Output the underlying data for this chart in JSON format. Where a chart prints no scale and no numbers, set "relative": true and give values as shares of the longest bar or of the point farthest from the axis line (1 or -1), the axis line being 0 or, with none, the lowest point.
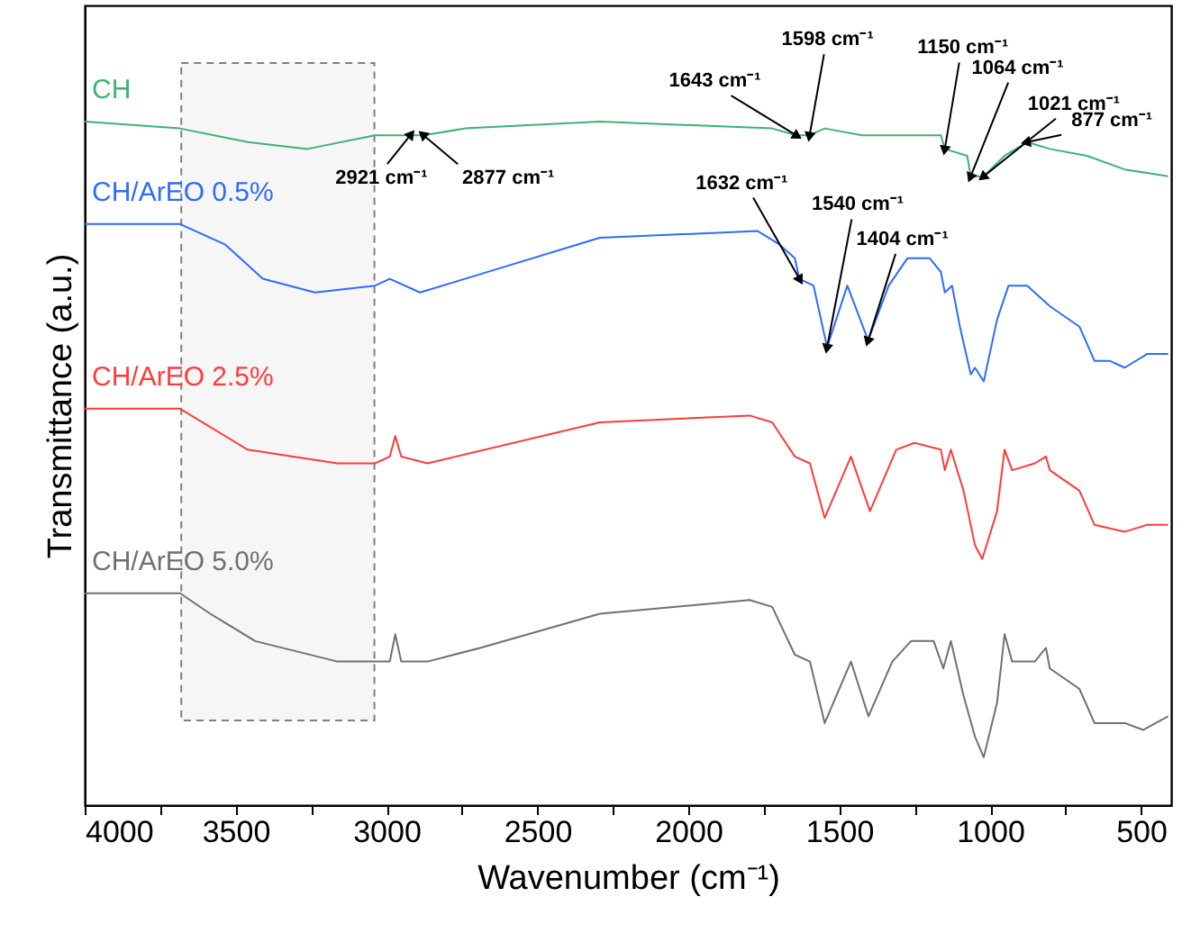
{
  "chart_data": {
    "type": "line",
    "relative": true,
    "xlabel": "Wavenumber (cm⁻¹)",
    "ylabel": "Transmittance (a.u.)",
    "xlim": [
      4000,
      400
    ],
    "xticks": [
      4000,
      {
        "value": 3750,
        "label": null
      },
      3500,
      {
        "value": 3250,
        "label": null
      },
      3000,
      {
        "value": 2750,
        "label": null
      },
      2500,
      {
        "value": 2250,
        "label": null
      },
      2000,
      {
        "value": 1750,
        "label": null
      },
      1500,
      {
        "value": 1250,
        "label": null
      },
      1000,
      {
        "value": 750,
        "label": null
      },
      500
    ],
    "tick_labels": "x",
    "grid": false,
    "marker": "none",
    "line_style": "solid",
    "series": [
      {
        "name": "CH",
        "color": "#3cb371",
        "x": [
          4000,
          3684,
          3460,
          3262,
          3038,
          2921,
          2877,
          2740,
          2293,
          1722,
          1643,
          1598,
          1548,
          1424,
          1200,
          1163,
          1150,
          1076,
          1064,
          1021,
          952,
          877,
          802,
          679,
          554,
          410
        ],
        "values": [
          1.0,
          0.99,
          0.97,
          0.96,
          0.98,
          0.98,
          0.98,
          0.99,
          1.0,
          0.99,
          0.98,
          0.98,
          0.99,
          0.98,
          0.98,
          0.98,
          0.96,
          0.95,
          0.92,
          0.92,
          0.95,
          0.97,
          0.96,
          0.95,
          0.93,
          0.92
        ]
      },
      {
        "name": "CH/ArEO 0.5%",
        "color": "#2f6bff",
        "x": [
          4000,
          3684,
          3534,
          3410,
          3237,
          3038,
          2989,
          2889,
          2740,
          2293,
          1771,
          1697,
          1647,
          1632,
          1585,
          1540,
          1473,
          1404,
          1336,
          1274,
          1200,
          1163,
          1150,
          1126,
          1100,
          1064,
          1050,
          1021,
          977,
          939,
          877,
          802,
          704,
          654,
          604,
          554,
          480,
          410
        ],
        "values": [
          0.85,
          0.85,
          0.82,
          0.77,
          0.75,
          0.76,
          0.77,
          0.75,
          0.77,
          0.83,
          0.84,
          0.82,
          0.8,
          0.77,
          0.76,
          0.67,
          0.76,
          0.68,
          0.76,
          0.8,
          0.8,
          0.78,
          0.75,
          0.76,
          0.7,
          0.63,
          0.64,
          0.62,
          0.71,
          0.76,
          0.76,
          0.73,
          0.7,
          0.65,
          0.65,
          0.64,
          0.66,
          0.66
        ]
      },
      {
        "name": "CH/ArEO 2.5%",
        "color": "#ff3b3b",
        "x": [
          4000,
          3684,
          3460,
          3162,
          3038,
          2989,
          2971,
          2951,
          2864,
          2293,
          1797,
          1722,
          1647,
          1597,
          1548,
          1461,
          1398,
          1311,
          1250,
          1163,
          1150,
          1130,
          1088,
          1050,
          1026,
          977,
          952,
          927,
          852,
          815,
          802,
          704,
          654,
          554,
          480,
          410
        ],
        "values": [
          0.58,
          0.58,
          0.52,
          0.5,
          0.5,
          0.51,
          0.54,
          0.51,
          0.5,
          0.56,
          0.57,
          0.56,
          0.51,
          0.5,
          0.42,
          0.51,
          0.43,
          0.52,
          0.53,
          0.52,
          0.49,
          0.52,
          0.46,
          0.38,
          0.36,
          0.43,
          0.52,
          0.49,
          0.5,
          0.51,
          0.49,
          0.46,
          0.41,
          0.4,
          0.41,
          0.41
        ]
      },
      {
        "name": "CH/ArEO 5.0%",
        "color": "#707070",
        "x": [
          4000,
          3684,
          3584,
          3435,
          3162,
          3038,
          2989,
          2971,
          2951,
          2864,
          2690,
          2293,
          1797,
          1722,
          1647,
          1597,
          1548,
          1461,
          1403,
          1324,
          1262,
          1187,
          1155,
          1130,
          1088,
          1050,
          1021,
          977,
          952,
          927,
          852,
          815,
          802,
          704,
          654,
          554,
          493,
          410
        ],
        "values": [
          0.31,
          0.31,
          0.28,
          0.24,
          0.21,
          0.21,
          0.21,
          0.25,
          0.21,
          0.21,
          0.23,
          0.28,
          0.3,
          0.29,
          0.22,
          0.21,
          0.12,
          0.21,
          0.13,
          0.21,
          0.24,
          0.24,
          0.2,
          0.24,
          0.16,
          0.1,
          0.07,
          0.15,
          0.25,
          0.21,
          0.21,
          0.23,
          0.2,
          0.17,
          0.12,
          0.12,
          0.11,
          0.13
        ]
      }
    ],
    "bands": [
      {
        "axis": "x",
        "from": 3680,
        "to": 3040,
        "color": "#808080"
      }
    ],
    "annotations": [
      {
        "text": "2921 cm⁻¹",
        "x": 2921,
        "y": 0.98
      },
      {
        "text": "2877 cm⁻¹",
        "x": 2877,
        "y": 0.98
      },
      {
        "text": "1643 cm⁻¹",
        "x": 1643,
        "y": 0.98
      },
      {
        "text": "1598 cm⁻¹",
        "x": 1598,
        "y": 0.98
      },
      {
        "text": "1150 cm⁻¹",
        "x": 1150,
        "y": 0.96
      },
      {
        "text": "1064 cm⁻¹",
        "x": 1064,
        "y": 0.92
      },
      {
        "text": "1021 cm⁻¹",
        "x": 1021,
        "y": 0.92
      },
      {
        "text": "877 cm⁻¹",
        "x": 877,
        "y": 0.97
      },
      {
        "text": "1632 cm⁻¹",
        "x": 1632,
        "y": 0.77
      },
      {
        "text": "1540 cm⁻¹",
        "x": 1540,
        "y": 0.67
      },
      {
        "text": "1404 cm⁻¹",
        "x": 1404,
        "y": 0.68
      }
    ]
  }
}
